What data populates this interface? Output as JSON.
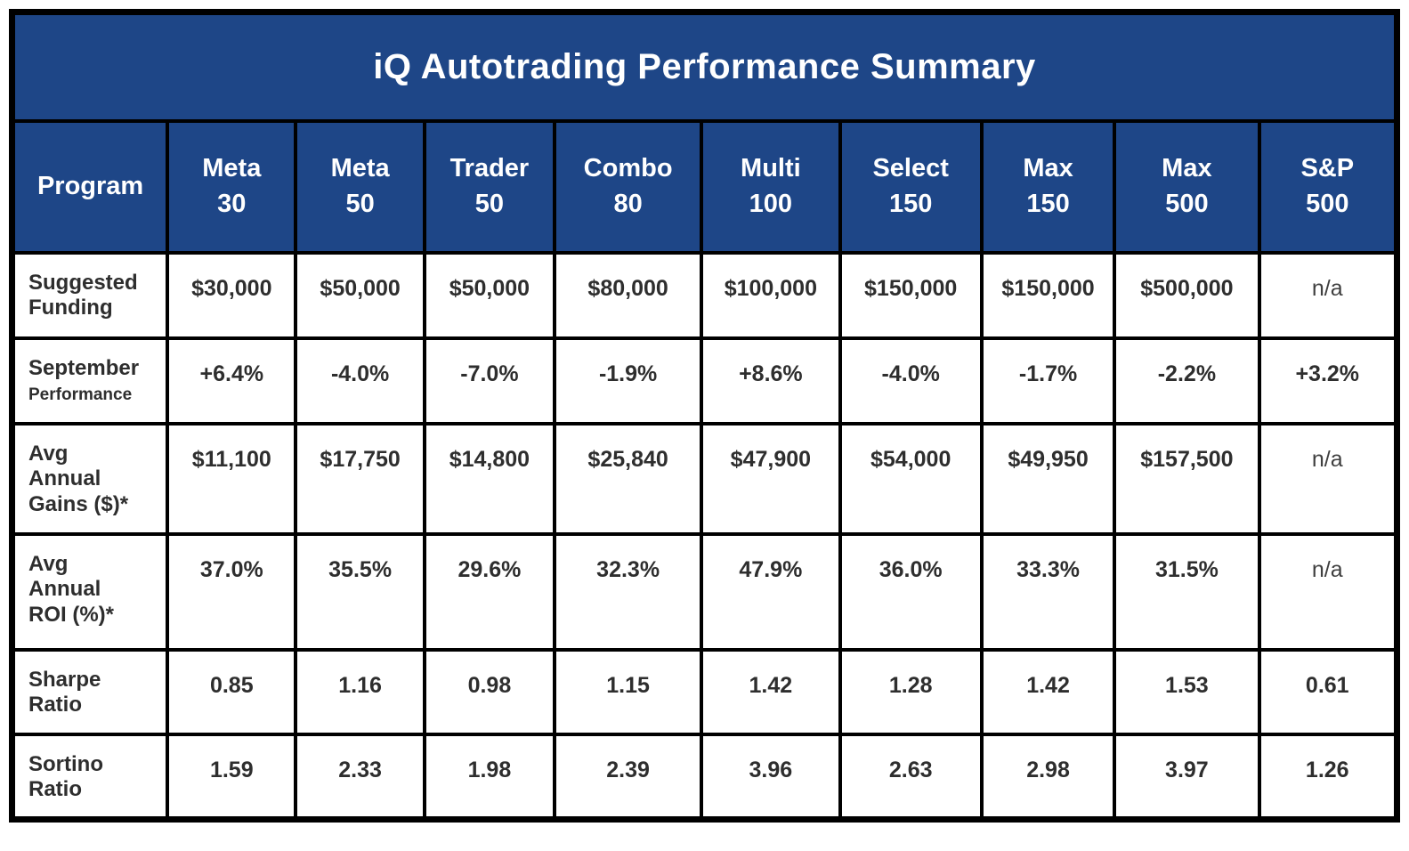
{
  "table": {
    "title": "iQ Autotrading Performance Summary",
    "na_text": "n/a",
    "columns": [
      {
        "id": "program",
        "lines": [
          "Program"
        ]
      },
      {
        "id": "meta-30",
        "lines": [
          "Meta",
          "30"
        ]
      },
      {
        "id": "meta-50",
        "lines": [
          "Meta",
          "50"
        ]
      },
      {
        "id": "trader-50",
        "lines": [
          "Trader",
          "50"
        ]
      },
      {
        "id": "combo-80",
        "lines": [
          "Combo",
          "80"
        ]
      },
      {
        "id": "multi-100",
        "lines": [
          "Multi",
          "100"
        ]
      },
      {
        "id": "select-150",
        "lines": [
          "Select",
          "150"
        ]
      },
      {
        "id": "max-150",
        "lines": [
          "Max",
          "150"
        ]
      },
      {
        "id": "max-500",
        "lines": [
          "Max",
          "500"
        ]
      },
      {
        "id": "sp-500",
        "lines": [
          "S&P",
          "500"
        ]
      }
    ],
    "rows": [
      {
        "id": "suggested-funding",
        "label_lines": [
          "Suggested",
          "Funding"
        ],
        "sublabel": ""
      },
      {
        "id": "september-performance",
        "label_lines": [
          "September"
        ],
        "sublabel": "Performance"
      },
      {
        "id": "avg-annual-gains",
        "label_lines": [
          "Avg",
          "Annual",
          "Gains ($)*"
        ],
        "sublabel": ""
      },
      {
        "id": "avg-annual-roi",
        "label_lines": [
          "Avg",
          "Annual",
          "ROI (%)*"
        ],
        "sublabel": ""
      },
      {
        "id": "sharpe-ratio",
        "label_lines": [
          "Sharpe",
          "Ratio"
        ],
        "sublabel": ""
      },
      {
        "id": "sortino-ratio",
        "label_lines": [
          "Sortino",
          "Ratio"
        ],
        "sublabel": ""
      }
    ]
  },
  "chart_data": {
    "type": "table",
    "title": "iQ Autotrading Performance Summary",
    "categories": [
      "Meta 30",
      "Meta 50",
      "Trader 50",
      "Combo 80",
      "Multi 100",
      "Select 150",
      "Max 150",
      "Max 500",
      "S&P 500"
    ],
    "series": [
      {
        "name": "Suggested Funding",
        "values": [
          "$30,000",
          "$50,000",
          "$50,000",
          "$80,000",
          "$100,000",
          "$150,000",
          "$150,000",
          "$500,000",
          "n/a"
        ]
      },
      {
        "name": "September Performance",
        "values": [
          "+6.4%",
          "-4.0%",
          "-7.0%",
          "-1.9%",
          "+8.6%",
          "-4.0%",
          "-1.7%",
          "-2.2%",
          "+3.2%"
        ]
      },
      {
        "name": "Avg Annual Gains ($)*",
        "values": [
          "$11,100",
          "$17,750",
          "$14,800",
          "$25,840",
          "$47,900",
          "$54,000",
          "$49,950",
          "$157,500",
          "n/a"
        ]
      },
      {
        "name": "Avg Annual ROI (%)*",
        "values": [
          "37.0%",
          "35.5%",
          "29.6%",
          "32.3%",
          "47.9%",
          "36.0%",
          "33.3%",
          "31.5%",
          "n/a"
        ]
      },
      {
        "name": "Sharpe Ratio",
        "values": [
          "0.85",
          "1.16",
          "0.98",
          "1.15",
          "1.42",
          "1.28",
          "1.42",
          "1.53",
          "0.61"
        ]
      },
      {
        "name": "Sortino Ratio",
        "values": [
          "1.59",
          "2.33",
          "1.98",
          "2.39",
          "3.96",
          "2.63",
          "2.98",
          "3.97",
          "1.26"
        ]
      }
    ]
  },
  "colors": {
    "header_blue": "#1e4687",
    "border_black": "#000000",
    "value_text": "#2e2e2e",
    "na_text": "#3f3f3f"
  }
}
